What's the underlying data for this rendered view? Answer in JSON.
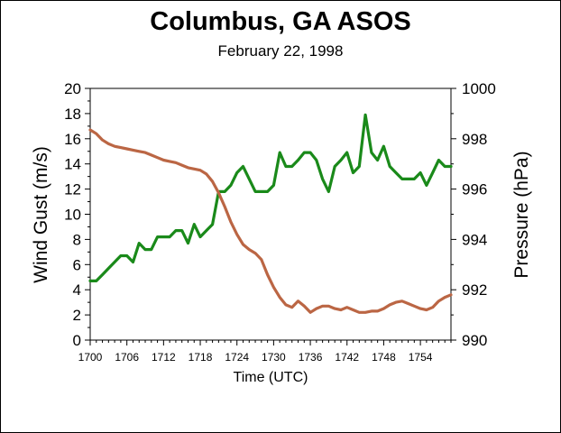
{
  "chart_data": {
    "type": "line",
    "title": "Columbus, GA ASOS",
    "subtitle": "February 22, 1998",
    "xlabel": "Time (UTC)",
    "ylabel_left": "Wind Gust (m/s)",
    "ylabel_right": "Pressure (hPa)",
    "xlim": [
      1700,
      1759
    ],
    "ylim_left": [
      0,
      20
    ],
    "ylim_right": [
      990,
      1000
    ],
    "x_ticks": [
      1700,
      1706,
      1712,
      1718,
      1724,
      1730,
      1736,
      1742,
      1748,
      1754
    ],
    "y_ticks_left": [
      0,
      2,
      4,
      6,
      8,
      10,
      12,
      14,
      16,
      18,
      20
    ],
    "y_ticks_right": [
      990,
      992,
      994,
      996,
      998,
      1000
    ],
    "grid": false,
    "series": [
      {
        "axis": "left",
        "color": "#1a8a1a",
        "x": [
          1700,
          1701,
          1702,
          1703,
          1704,
          1705,
          1706,
          1707,
          1708,
          1709,
          1710,
          1711,
          1712,
          1713,
          1714,
          1715,
          1716,
          1717,
          1718,
          1719,
          1720,
          1721,
          1722,
          1723,
          1724,
          1725,
          1726,
          1727,
          1728,
          1729,
          1730,
          1731,
          1732,
          1733,
          1734,
          1735,
          1736,
          1737,
          1738,
          1739,
          1740,
          1741,
          1742,
          1743,
          1744,
          1745,
          1746,
          1747,
          1748,
          1749,
          1750,
          1751,
          1752,
          1753,
          1754,
          1755,
          1756,
          1757,
          1758,
          1759
        ],
        "values": [
          4.7,
          4.7,
          5.2,
          5.7,
          6.2,
          6.7,
          6.7,
          6.2,
          7.7,
          7.2,
          7.2,
          8.2,
          8.2,
          8.2,
          8.7,
          8.7,
          7.7,
          9.2,
          8.2,
          8.7,
          9.2,
          11.8,
          11.8,
          12.3,
          13.3,
          13.8,
          12.8,
          11.8,
          11.8,
          11.8,
          12.3,
          14.9,
          13.8,
          13.8,
          14.3,
          14.9,
          14.9,
          14.3,
          12.8,
          11.8,
          13.8,
          14.3,
          14.9,
          13.3,
          13.8,
          17.9,
          14.9,
          14.3,
          15.4,
          13.8,
          13.3,
          12.8,
          12.8,
          12.8,
          13.3,
          12.3,
          13.3,
          14.3,
          13.8,
          13.8
        ]
      },
      {
        "axis": "right",
        "color": "#bb6644",
        "x": [
          1700,
          1701,
          1702,
          1703,
          1704,
          1705,
          1706,
          1707,
          1708,
          1709,
          1710,
          1711,
          1712,
          1713,
          1714,
          1715,
          1716,
          1717,
          1718,
          1719,
          1720,
          1721,
          1722,
          1723,
          1724,
          1725,
          1726,
          1727,
          1728,
          1729,
          1730,
          1731,
          1732,
          1733,
          1734,
          1735,
          1736,
          1737,
          1738,
          1739,
          1740,
          1741,
          1742,
          1743,
          1744,
          1745,
          1746,
          1747,
          1748,
          1749,
          1750,
          1751,
          1752,
          1753,
          1754,
          1755,
          1756,
          1757,
          1758,
          1759
        ],
        "values": [
          998.35,
          998.2,
          997.95,
          997.8,
          997.7,
          997.65,
          997.6,
          997.55,
          997.5,
          997.45,
          997.35,
          997.25,
          997.15,
          997.1,
          997.05,
          996.95,
          996.85,
          996.8,
          996.75,
          996.6,
          996.3,
          995.85,
          995.3,
          994.7,
          994.2,
          993.8,
          993.6,
          993.45,
          993.2,
          992.6,
          992.1,
          991.7,
          991.4,
          991.3,
          991.55,
          991.35,
          991.1,
          991.25,
          991.35,
          991.35,
          991.25,
          991.2,
          991.3,
          991.2,
          991.1,
          991.1,
          991.15,
          991.15,
          991.25,
          991.4,
          991.5,
          991.55,
          991.45,
          991.35,
          991.25,
          991.2,
          991.3,
          991.55,
          991.7,
          991.8
        ]
      }
    ]
  }
}
